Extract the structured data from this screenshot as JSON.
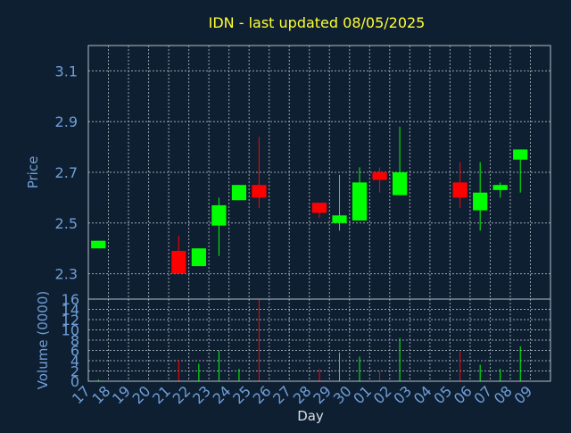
{
  "title": "IDN - last updated 08/05/2025",
  "colors": {
    "background": "#0f1f32",
    "up": "#00ff00",
    "down": "#ff0000",
    "axis_text": "#6f9fd8",
    "title": "#ffff33",
    "grid": "#9aa3ad"
  },
  "chart_data": [
    {
      "type": "candlestick",
      "ylabel": "Price",
      "ylim": [
        2.2,
        3.2
      ],
      "yticks": [
        2.3,
        2.5,
        2.7,
        2.9,
        3.1
      ],
      "ytick_labels": [
        "2.3",
        "2.5",
        "2.7",
        "2.9",
        "3.1"
      ],
      "grid": true,
      "candles": [
        {
          "x": "17",
          "open": 2.4,
          "close": 2.43,
          "high": 2.43,
          "low": 2.4,
          "direction": "up"
        },
        {
          "x": "21",
          "open": 2.39,
          "close": 2.3,
          "high": 2.45,
          "low": 2.3,
          "direction": "down"
        },
        {
          "x": "22",
          "open": 2.33,
          "close": 2.4,
          "high": 2.4,
          "low": 2.33,
          "direction": "up"
        },
        {
          "x": "23",
          "open": 2.49,
          "close": 2.57,
          "high": 2.6,
          "low": 2.37,
          "direction": "up"
        },
        {
          "x": "24",
          "open": 2.59,
          "close": 2.65,
          "high": 2.65,
          "low": 2.59,
          "direction": "up"
        },
        {
          "x": "25",
          "open": 2.65,
          "close": 2.6,
          "high": 2.84,
          "low": 2.56,
          "direction": "down"
        },
        {
          "x": "28",
          "open": 2.58,
          "close": 2.54,
          "high": 2.58,
          "low": 2.52,
          "direction": "down"
        },
        {
          "x": "29",
          "open": 2.5,
          "close": 2.53,
          "high": 2.69,
          "low": 2.47,
          "direction": "up"
        },
        {
          "x": "30",
          "open": 2.51,
          "close": 2.66,
          "high": 2.72,
          "low": 2.51,
          "direction": "up"
        },
        {
          "x": "01",
          "open": 2.7,
          "close": 2.67,
          "high": 2.72,
          "low": 2.62,
          "direction": "down"
        },
        {
          "x": "02",
          "open": 2.61,
          "close": 2.7,
          "high": 2.88,
          "low": 2.61,
          "direction": "up"
        },
        {
          "x": "05",
          "open": 2.66,
          "close": 2.6,
          "high": 2.74,
          "low": 2.56,
          "direction": "down"
        },
        {
          "x": "06",
          "open": 2.55,
          "close": 2.62,
          "high": 2.74,
          "low": 2.47,
          "direction": "up"
        },
        {
          "x": "07",
          "open": 2.63,
          "close": 2.65,
          "high": 2.66,
          "low": 2.6,
          "direction": "up"
        },
        {
          "x": "08",
          "open": 2.75,
          "close": 2.79,
          "high": 2.79,
          "low": 2.62,
          "direction": "up"
        }
      ]
    },
    {
      "type": "bar",
      "ylabel": "Volume (0000)",
      "xlabel": "Day",
      "ylim": [
        0,
        16
      ],
      "yticks": [
        0,
        2,
        4,
        6,
        8,
        10,
        12,
        14,
        16
      ],
      "ytick_labels": [
        "0",
        "2",
        "4",
        "6",
        "8",
        "10",
        "12",
        "14",
        "16"
      ],
      "x_tick_labels": [
        "17",
        "18",
        "19",
        "20",
        "21",
        "22",
        "23",
        "24",
        "25",
        "26",
        "27",
        "28",
        "29",
        "30",
        "01",
        "02",
        "03",
        "04",
        "05",
        "06",
        "07",
        "08",
        "09"
      ],
      "grid": true,
      "bars": [
        {
          "x": "17",
          "value": 0.3,
          "direction": "up"
        },
        {
          "x": "21",
          "value": 4.2,
          "direction": "down"
        },
        {
          "x": "22",
          "value": 3.4,
          "direction": "up"
        },
        {
          "x": "23",
          "value": 6.0,
          "direction": "up"
        },
        {
          "x": "24",
          "value": 2.4,
          "direction": "up"
        },
        {
          "x": "25",
          "value": 16.0,
          "direction": "down"
        },
        {
          "x": "28",
          "value": 2.4,
          "direction": "down"
        },
        {
          "x": "29",
          "value": 5.6,
          "direction": "up"
        },
        {
          "x": "30",
          "value": 4.8,
          "direction": "up"
        },
        {
          "x": "01",
          "value": 2.0,
          "direction": "down"
        },
        {
          "x": "02",
          "value": 8.4,
          "direction": "up"
        },
        {
          "x": "05",
          "value": 5.8,
          "direction": "down"
        },
        {
          "x": "06",
          "value": 3.2,
          "direction": "up"
        },
        {
          "x": "07",
          "value": 2.4,
          "direction": "up"
        },
        {
          "x": "08",
          "value": 6.8,
          "direction": "up"
        }
      ]
    }
  ]
}
